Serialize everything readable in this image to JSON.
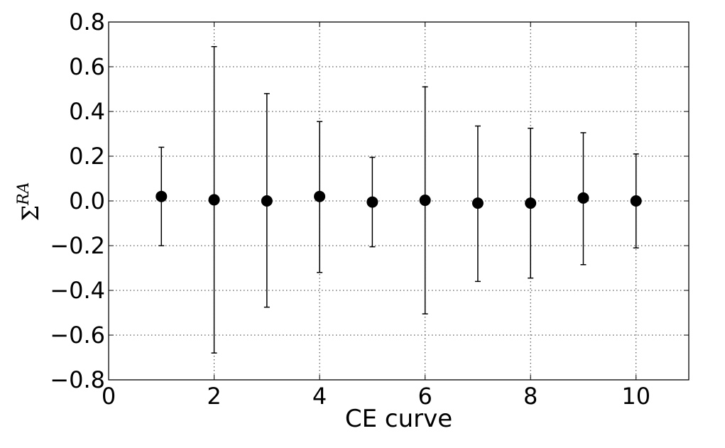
{
  "chart_data": {
    "type": "scatter",
    "xlabel": "CE curve",
    "ylabel": {
      "base": "Σ",
      "superscript": "RA"
    },
    "xlim": [
      0,
      11
    ],
    "ylim": [
      -0.8,
      0.8
    ],
    "xticks": [
      0,
      2,
      4,
      6,
      8,
      10
    ],
    "yticks": [
      0.8,
      0.6,
      0.4,
      0.2,
      0.0,
      -0.2,
      -0.4,
      -0.6,
      -0.8
    ],
    "xtick_labels": [
      "0",
      "2",
      "4",
      "6",
      "8",
      "10"
    ],
    "ytick_labels": [
      "0.8",
      "0.6",
      "0.4",
      "0.2",
      "0.0",
      "−0.2",
      "−0.4",
      "−0.6",
      "−0.8"
    ],
    "grid": true,
    "marker_color": "#000000",
    "points": [
      {
        "x": 1,
        "y": 0.02,
        "err_low": -0.2,
        "err_high": 0.24
      },
      {
        "x": 2,
        "y": 0.005,
        "err_low": -0.68,
        "err_high": 0.69
      },
      {
        "x": 3,
        "y": 0.0,
        "err_low": -0.475,
        "err_high": 0.48
      },
      {
        "x": 4,
        "y": 0.02,
        "err_low": -0.32,
        "err_high": 0.355
      },
      {
        "x": 5,
        "y": -0.005,
        "err_low": -0.205,
        "err_high": 0.195
      },
      {
        "x": 6,
        "y": 0.003,
        "err_low": -0.505,
        "err_high": 0.51
      },
      {
        "x": 7,
        "y": -0.01,
        "err_low": -0.36,
        "err_high": 0.335
      },
      {
        "x": 8,
        "y": -0.01,
        "err_low": -0.345,
        "err_high": 0.325
      },
      {
        "x": 9,
        "y": 0.013,
        "err_low": -0.285,
        "err_high": 0.305
      },
      {
        "x": 10,
        "y": 0.0,
        "err_low": -0.21,
        "err_high": 0.21
      }
    ]
  }
}
